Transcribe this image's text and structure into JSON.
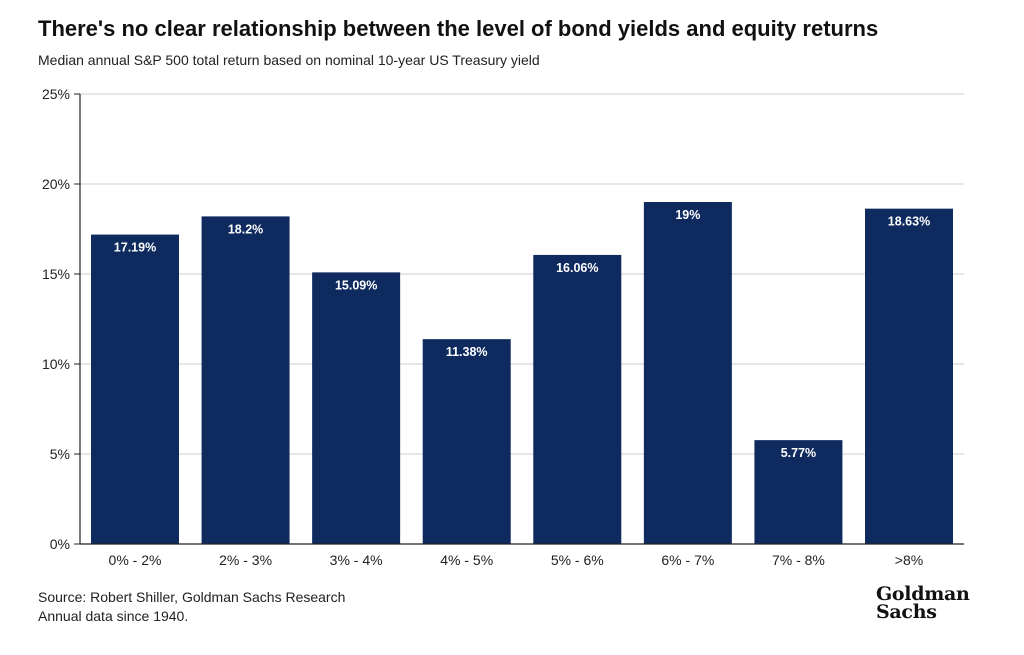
{
  "header": {
    "title": "There's no clear relationship between the level of bond yields and equity returns",
    "subtitle": "Median annual S&P 500 total return based on nominal 10-year US Treasury yield"
  },
  "footer": {
    "source": "Source: Robert Shiller, Goldman Sachs Research",
    "note": "Annual data since 1940.",
    "logo_line1": "Goldman",
    "logo_line2": "Sachs"
  },
  "chart_data": {
    "type": "bar",
    "title": "There's no clear relationship between the level of bond yields and equity returns",
    "subtitle": "Median annual S&P 500 total return based on nominal 10-year US Treasury yield",
    "categories": [
      "0% - 2%",
      "2% - 3%",
      "3% - 4%",
      "4% - 5%",
      "5% - 6%",
      "6% - 7%",
      "7% - 8%",
      ">8%"
    ],
    "values": [
      17.19,
      18.2,
      15.09,
      11.38,
      16.06,
      19,
      5.77,
      18.63
    ],
    "data_labels": [
      "17.19%",
      "18.2%",
      "15.09%",
      "11.38%",
      "16.06%",
      "19%",
      "5.77%",
      "18.63%"
    ],
    "ylim": [
      0,
      25
    ],
    "yticks": [
      0,
      5,
      10,
      15,
      20,
      25
    ],
    "ytick_labels": [
      "0%",
      "5%",
      "10%",
      "15%",
      "20%",
      "25%"
    ],
    "xlabel": "",
    "ylabel": "",
    "grid": true,
    "bar_color": "#0e2a5e",
    "grid_color": "#cccccc"
  }
}
